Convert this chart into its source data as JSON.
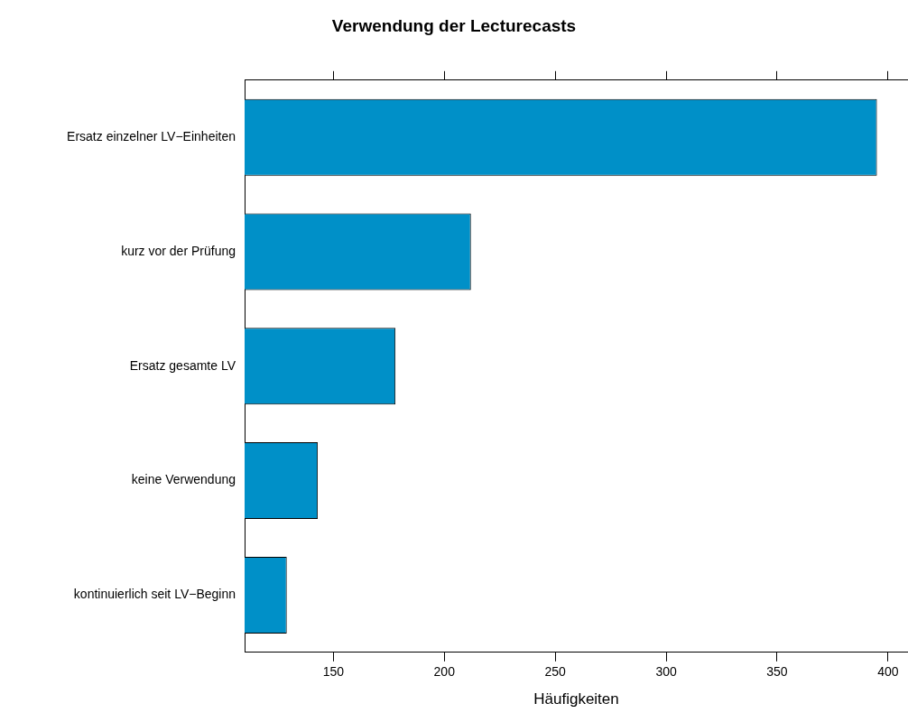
{
  "chart_data": {
    "type": "bar",
    "orientation": "horizontal",
    "title": "Verwendung der Lecturecasts",
    "xlabel": "Häufigkeiten",
    "categories": [
      "Ersatz einzelner LV−Einheiten",
      "kurz vor der Prüfung",
      "Ersatz gesamte LV",
      "keine Verwendung",
      "kontinuierlich seit LV−Beginn"
    ],
    "values": [
      395,
      212,
      178,
      143,
      129
    ],
    "color": "#0090c8",
    "xlim": [
      110,
      409
    ],
    "xticks": [
      150,
      200,
      250,
      300,
      350,
      400
    ],
    "grid": false,
    "legend": false
  }
}
